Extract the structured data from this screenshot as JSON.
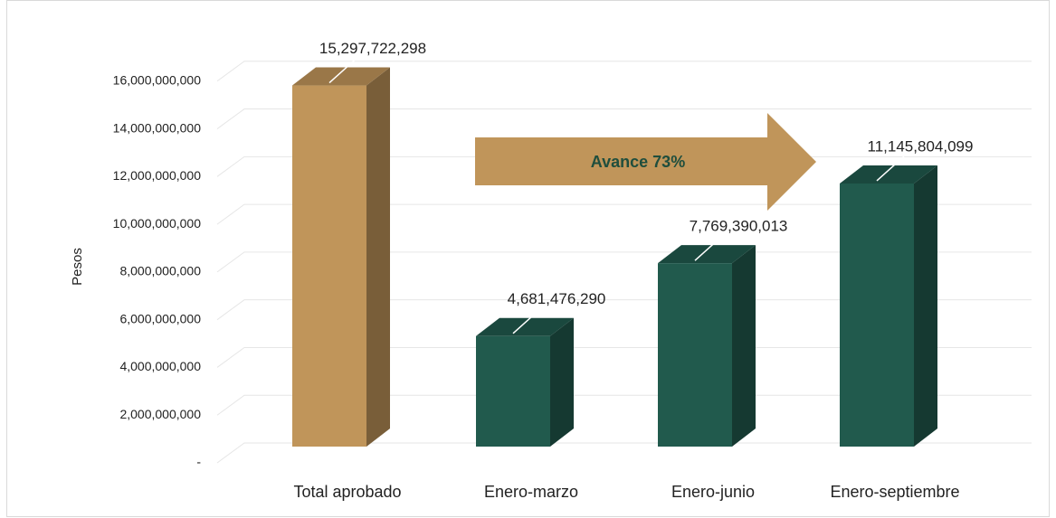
{
  "chart_data": {
    "type": "bar3d",
    "y_label": "Pesos",
    "annotation": "Avance 73%",
    "categories": [
      "Total aprobado",
      "Enero-marzo",
      "Enero-junio",
      "Enero-septiembre"
    ],
    "values": [
      15297722298,
      4681476290,
      7769390013,
      11145804099
    ],
    "value_labels": [
      "15,297,722,298",
      "4,681,476,290",
      "7,769,390,013",
      "11,145,804,099"
    ],
    "colors": [
      "#c0955a",
      "#215a4d",
      "#215a4d",
      "#215a4d"
    ],
    "ylim": [
      0,
      18000000000
    ],
    "yticks": [
      {
        "value": 0,
        "label": "-"
      },
      {
        "value": 2000000000,
        "label": "2,000,000,000"
      },
      {
        "value": 4000000000,
        "label": "4,000,000,000"
      },
      {
        "value": 6000000000,
        "label": "6,000,000,000"
      },
      {
        "value": 8000000000,
        "label": "8,000,000,000"
      },
      {
        "value": 10000000000,
        "label": "10,000,000,000"
      },
      {
        "value": 12000000000,
        "label": "12,000,000,000"
      },
      {
        "value": 14000000000,
        "label": "14,000,000,000"
      },
      {
        "value": 16000000000,
        "label": "16,000,000,000"
      }
    ],
    "grid": true
  }
}
